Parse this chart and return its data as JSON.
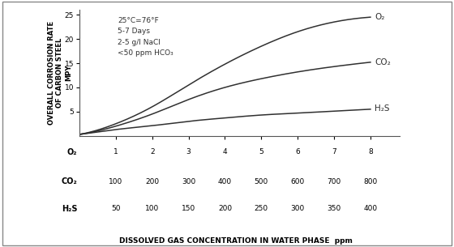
{
  "annotation": "25°C=76°F\n5-7 Days\n2-5 g/l NaCl\n<50 ppm HCO₃",
  "ylabel_line1": "OVERALL CORROSION RATE",
  "ylabel_line2": "OF CARBON STEEL",
  "ylabel_line3": "MPY",
  "xlabel": "DISSOLVED GAS CONCENTRATION IN WATER PHASE  ppm",
  "xlim": [
    0,
    8.8
  ],
  "ylim": [
    0,
    26
  ],
  "x_ticks": [
    1,
    2,
    3,
    4,
    5,
    6,
    7,
    8
  ],
  "y_ticks": [
    5,
    10,
    15,
    20,
    25
  ],
  "o2_x": [
    0,
    0.5,
    1,
    2,
    3,
    4,
    5,
    6,
    7,
    8
  ],
  "o2_y": [
    0.3,
    1.2,
    2.5,
    6.0,
    10.5,
    14.8,
    18.5,
    21.5,
    23.5,
    24.5
  ],
  "co2_x": [
    0,
    0.5,
    1,
    2,
    3,
    4,
    5,
    6,
    7,
    8
  ],
  "co2_y": [
    0.3,
    1.0,
    2.0,
    4.5,
    7.5,
    10.0,
    11.8,
    13.2,
    14.3,
    15.2
  ],
  "h2s_x": [
    0,
    0.5,
    1,
    2,
    3,
    4,
    5,
    6,
    7,
    8
  ],
  "h2s_y": [
    0.3,
    0.8,
    1.3,
    2.1,
    3.0,
    3.7,
    4.3,
    4.7,
    5.1,
    5.5
  ],
  "label_o2": "O₂",
  "label_co2": "CO₂",
  "label_h2s": "H₂S",
  "row_o2_label": "O₂",
  "row_co2_label": "CO₂",
  "row_h2s_label": "H₂S",
  "row_o2_ticks": [
    "1",
    "2",
    "3",
    "4",
    "5",
    "6",
    "7",
    "8"
  ],
  "row_co2_ticks": [
    "100",
    "200",
    "300",
    "400",
    "500",
    "600",
    "700",
    "800"
  ],
  "row_h2s_ticks": [
    "50",
    "100",
    "150",
    "200",
    "250",
    "300",
    "350",
    "400"
  ],
  "line_color": "#303030",
  "bg_color": "#ffffff"
}
